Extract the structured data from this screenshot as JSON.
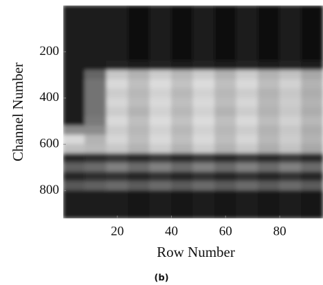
{
  "chart_data": {
    "type": "heatmap",
    "caption": "(b)",
    "x_label": "Row Number",
    "y_label": "Channel Number",
    "x": [
      4,
      12,
      20,
      28,
      36,
      44,
      52,
      60,
      68,
      76,
      84,
      92
    ],
    "y": [
      20,
      60,
      100,
      140,
      180,
      220,
      260,
      300,
      340,
      380,
      420,
      460,
      500,
      540,
      580,
      620,
      660,
      700,
      740,
      780,
      820,
      860,
      900
    ],
    "z": [
      [
        0.12,
        0.1,
        0.1,
        0.06,
        0.1,
        0.06,
        0.1,
        0.06,
        0.1,
        0.06,
        0.1,
        0.06
      ],
      [
        0.12,
        0.1,
        0.1,
        0.06,
        0.1,
        0.06,
        0.1,
        0.06,
        0.1,
        0.06,
        0.1,
        0.06
      ],
      [
        0.12,
        0.1,
        0.1,
        0.06,
        0.1,
        0.06,
        0.1,
        0.06,
        0.1,
        0.06,
        0.1,
        0.06
      ],
      [
        0.12,
        0.1,
        0.1,
        0.06,
        0.1,
        0.06,
        0.1,
        0.06,
        0.1,
        0.06,
        0.1,
        0.06
      ],
      [
        0.12,
        0.1,
        0.1,
        0.06,
        0.1,
        0.06,
        0.1,
        0.06,
        0.1,
        0.06,
        0.1,
        0.06
      ],
      [
        0.12,
        0.1,
        0.1,
        0.06,
        0.1,
        0.06,
        0.1,
        0.06,
        0.1,
        0.06,
        0.1,
        0.06
      ],
      [
        0.12,
        0.12,
        0.14,
        0.1,
        0.14,
        0.1,
        0.14,
        0.1,
        0.14,
        0.1,
        0.14,
        0.1
      ],
      [
        0.12,
        0.4,
        0.78,
        0.7,
        0.8,
        0.72,
        0.8,
        0.7,
        0.8,
        0.7,
        0.76,
        0.66
      ],
      [
        0.12,
        0.45,
        0.85,
        0.75,
        0.86,
        0.76,
        0.86,
        0.75,
        0.85,
        0.74,
        0.82,
        0.7
      ],
      [
        0.12,
        0.45,
        0.8,
        0.72,
        0.82,
        0.72,
        0.82,
        0.72,
        0.8,
        0.7,
        0.78,
        0.68
      ],
      [
        0.12,
        0.45,
        0.84,
        0.74,
        0.85,
        0.75,
        0.85,
        0.74,
        0.84,
        0.72,
        0.8,
        0.7
      ],
      [
        0.12,
        0.45,
        0.8,
        0.7,
        0.82,
        0.72,
        0.82,
        0.7,
        0.8,
        0.7,
        0.78,
        0.68
      ],
      [
        0.12,
        0.48,
        0.85,
        0.75,
        0.86,
        0.76,
        0.86,
        0.75,
        0.85,
        0.74,
        0.82,
        0.72
      ],
      [
        0.55,
        0.55,
        0.8,
        0.72,
        0.82,
        0.72,
        0.82,
        0.72,
        0.8,
        0.7,
        0.78,
        0.68
      ],
      [
        0.85,
        0.7,
        0.84,
        0.74,
        0.85,
        0.75,
        0.85,
        0.74,
        0.84,
        0.72,
        0.8,
        0.7
      ],
      [
        0.75,
        0.72,
        0.78,
        0.7,
        0.8,
        0.7,
        0.8,
        0.7,
        0.78,
        0.68,
        0.76,
        0.66
      ],
      [
        0.15,
        0.18,
        0.22,
        0.16,
        0.22,
        0.16,
        0.22,
        0.16,
        0.22,
        0.16,
        0.22,
        0.16
      ],
      [
        0.38,
        0.42,
        0.5,
        0.42,
        0.5,
        0.42,
        0.5,
        0.42,
        0.5,
        0.42,
        0.5,
        0.42
      ],
      [
        0.15,
        0.18,
        0.2,
        0.15,
        0.2,
        0.15,
        0.2,
        0.15,
        0.2,
        0.15,
        0.2,
        0.15
      ],
      [
        0.35,
        0.38,
        0.42,
        0.36,
        0.42,
        0.36,
        0.42,
        0.36,
        0.42,
        0.36,
        0.42,
        0.36
      ],
      [
        0.1,
        0.1,
        0.12,
        0.08,
        0.12,
        0.08,
        0.12,
        0.08,
        0.12,
        0.08,
        0.12,
        0.08
      ],
      [
        0.1,
        0.1,
        0.12,
        0.08,
        0.12,
        0.08,
        0.12,
        0.08,
        0.12,
        0.08,
        0.12,
        0.08
      ],
      [
        0.1,
        0.1,
        0.12,
        0.08,
        0.12,
        0.08,
        0.12,
        0.08,
        0.12,
        0.08,
        0.12,
        0.08
      ]
    ],
    "xlim": [
      0,
      96
    ],
    "ylim": [
      0,
      920
    ],
    "y_inverted": true,
    "xticks": [
      20,
      40,
      60,
      80
    ],
    "yticks": [
      200,
      400,
      600,
      800
    ]
  }
}
